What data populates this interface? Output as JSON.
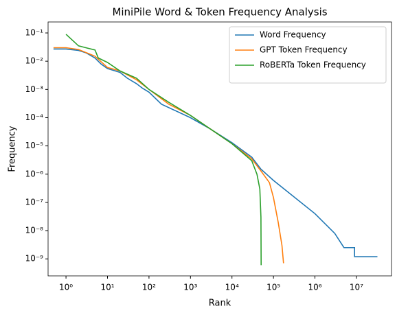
{
  "chart_data": {
    "type": "line",
    "title": "MiniPile Word & Token Frequency Analysis",
    "x_label": "Rank",
    "y_label": "Frequency",
    "xscale": "log",
    "yscale": "log",
    "legend": "upper right",
    "xlim": [
      0.37,
      70000000
    ],
    "ylim": [
      2.5e-10,
      0.245
    ],
    "xticks": [
      {
        "value": 1,
        "label": "10⁰"
      },
      {
        "value": 10,
        "label": "10¹"
      },
      {
        "value": 100,
        "label": "10²"
      },
      {
        "value": 1000,
        "label": "10³"
      },
      {
        "value": 10000,
        "label": "10⁴"
      },
      {
        "value": 100000,
        "label": "10⁵"
      },
      {
        "value": 1000000,
        "label": "10⁶"
      },
      {
        "value": 10000000,
        "label": "10⁷"
      }
    ],
    "yticks": [
      {
        "value": 1e-09,
        "label": "10⁻⁹"
      },
      {
        "value": 1e-08,
        "label": "10⁻⁸"
      },
      {
        "value": 1e-07,
        "label": "10⁻⁷"
      },
      {
        "value": 1e-06,
        "label": "10⁻⁶"
      },
      {
        "value": 1e-05,
        "label": "10⁻⁵"
      },
      {
        "value": 0.0001,
        "label": "10⁻⁴"
      },
      {
        "value": 0.001,
        "label": "10⁻³"
      },
      {
        "value": 0.01,
        "label": "10⁻²"
      },
      {
        "value": 0.1,
        "label": "10⁻¹"
      }
    ],
    "series": [
      {
        "name": "Word Frequency",
        "color": "#1f77b4",
        "x": [
          0.5,
          1,
          2,
          3,
          5,
          7,
          10,
          20,
          30,
          50,
          70,
          100,
          200,
          1000,
          3000,
          10000,
          30000,
          50000,
          100000,
          1000000,
          3000000,
          5000000,
          9000000,
          9000000,
          32000000
        ],
        "values": [
          0.027,
          0.027,
          0.024,
          0.02,
          0.013,
          0.008,
          0.0055,
          0.004,
          0.0025,
          0.0016,
          0.0011,
          0.0008,
          0.0003,
          0.0001,
          4e-05,
          1.3e-05,
          4e-06,
          1.5e-06,
          6e-07,
          4e-08,
          8e-09,
          2.5e-09,
          2.5e-09,
          1.2e-09,
          1.2e-09
        ]
      },
      {
        "name": "GPT Token Frequency",
        "color": "#ff7f0e",
        "x": [
          0.5,
          1,
          2,
          5,
          10,
          20,
          50,
          100,
          300,
          1000,
          3000,
          10000,
          30000,
          50000,
          80000,
          100000,
          130000,
          160000,
          175000
        ],
        "values": [
          0.03,
          0.03,
          0.026,
          0.015,
          0.006,
          0.0045,
          0.0022,
          0.001,
          0.0003,
          0.00012,
          4e-05,
          1.2e-05,
          3.5e-06,
          1.3e-06,
          5e-07,
          1.5e-07,
          2e-08,
          3e-09,
          7e-10
        ]
      },
      {
        "name": "RoBERTa Token Frequency",
        "color": "#2ca02c",
        "x": [
          1,
          2,
          3,
          5,
          6,
          10,
          20,
          50,
          100,
          300,
          1000,
          10000,
          30000,
          40000,
          47000,
          50000,
          50500
        ],
        "values": [
          0.09,
          0.035,
          0.03,
          0.025,
          0.013,
          0.009,
          0.0045,
          0.0025,
          0.001,
          0.00035,
          0.00012,
          1.2e-05,
          3e-06,
          1e-06,
          3e-07,
          3e-08,
          6e-10
        ]
      }
    ]
  }
}
